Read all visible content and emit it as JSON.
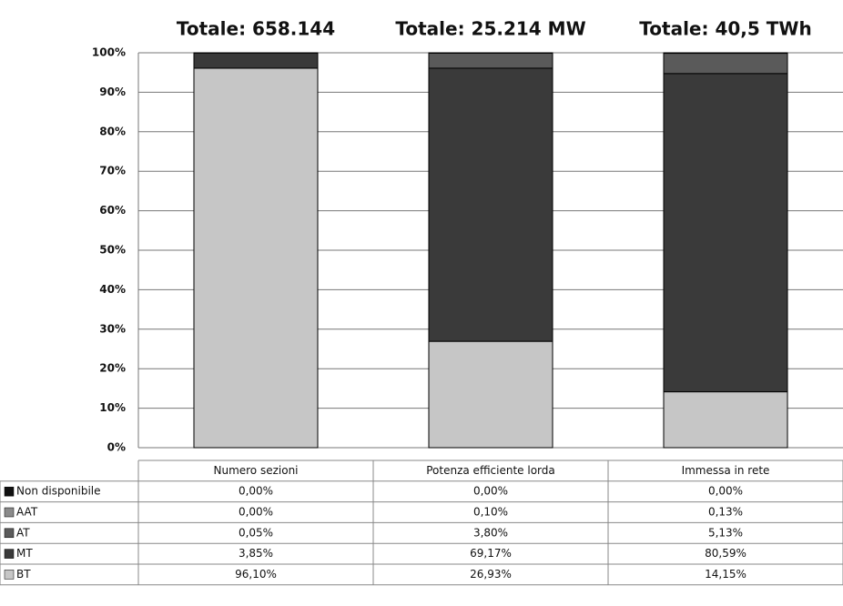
{
  "chart_data": {
    "type": "stacked_bar",
    "annotations": [
      "Totale: 658.144",
      "Totale: 25.214 MW",
      "Totale: 40,5 TWh"
    ],
    "categories": [
      "Numero sezioni",
      "Potenza efficiente lorda",
      "Immessa in rete"
    ],
    "series": [
      {
        "name": "BT",
        "color": "#c6c6c6",
        "values": [
          96.1,
          26.93,
          14.15
        ],
        "value_labels": [
          "96,10%",
          "26,93%",
          "14,15%"
        ]
      },
      {
        "name": "MT",
        "color": "#3a3a3a",
        "values": [
          3.85,
          69.17,
          80.59
        ],
        "value_labels": [
          "3,85%",
          "69,17%",
          "80,59%"
        ]
      },
      {
        "name": "AT",
        "color": "#5a5a5a",
        "values": [
          0.05,
          3.8,
          5.13
        ],
        "value_labels": [
          "0,05%",
          "3,80%",
          "5,13%"
        ]
      },
      {
        "name": "AAT",
        "color": "#8a8a8a",
        "values": [
          0.0,
          0.1,
          0.13
        ],
        "value_labels": [
          "0,00%",
          "0,10%",
          "0,13%"
        ]
      },
      {
        "name": "Non disponibile",
        "color": "#111111",
        "values": [
          0.0,
          0.0,
          0.0
        ],
        "value_labels": [
          "0,00%",
          "0,00%",
          "0,00%"
        ]
      }
    ],
    "ylim": [
      0,
      100
    ],
    "yticks": [
      {
        "value": 0,
        "label": "0%"
      },
      {
        "value": 10,
        "label": "10%"
      },
      {
        "value": 20,
        "label": "20%"
      },
      {
        "value": 30,
        "label": "30%"
      },
      {
        "value": 40,
        "label": "40%"
      },
      {
        "value": 50,
        "label": "50%"
      },
      {
        "value": 60,
        "label": "60%"
      },
      {
        "value": 70,
        "label": "70%"
      },
      {
        "value": 80,
        "label": "80%"
      },
      {
        "value": 90,
        "label": "90%"
      },
      {
        "value": 100,
        "label": "100%"
      }
    ],
    "grid": true
  }
}
